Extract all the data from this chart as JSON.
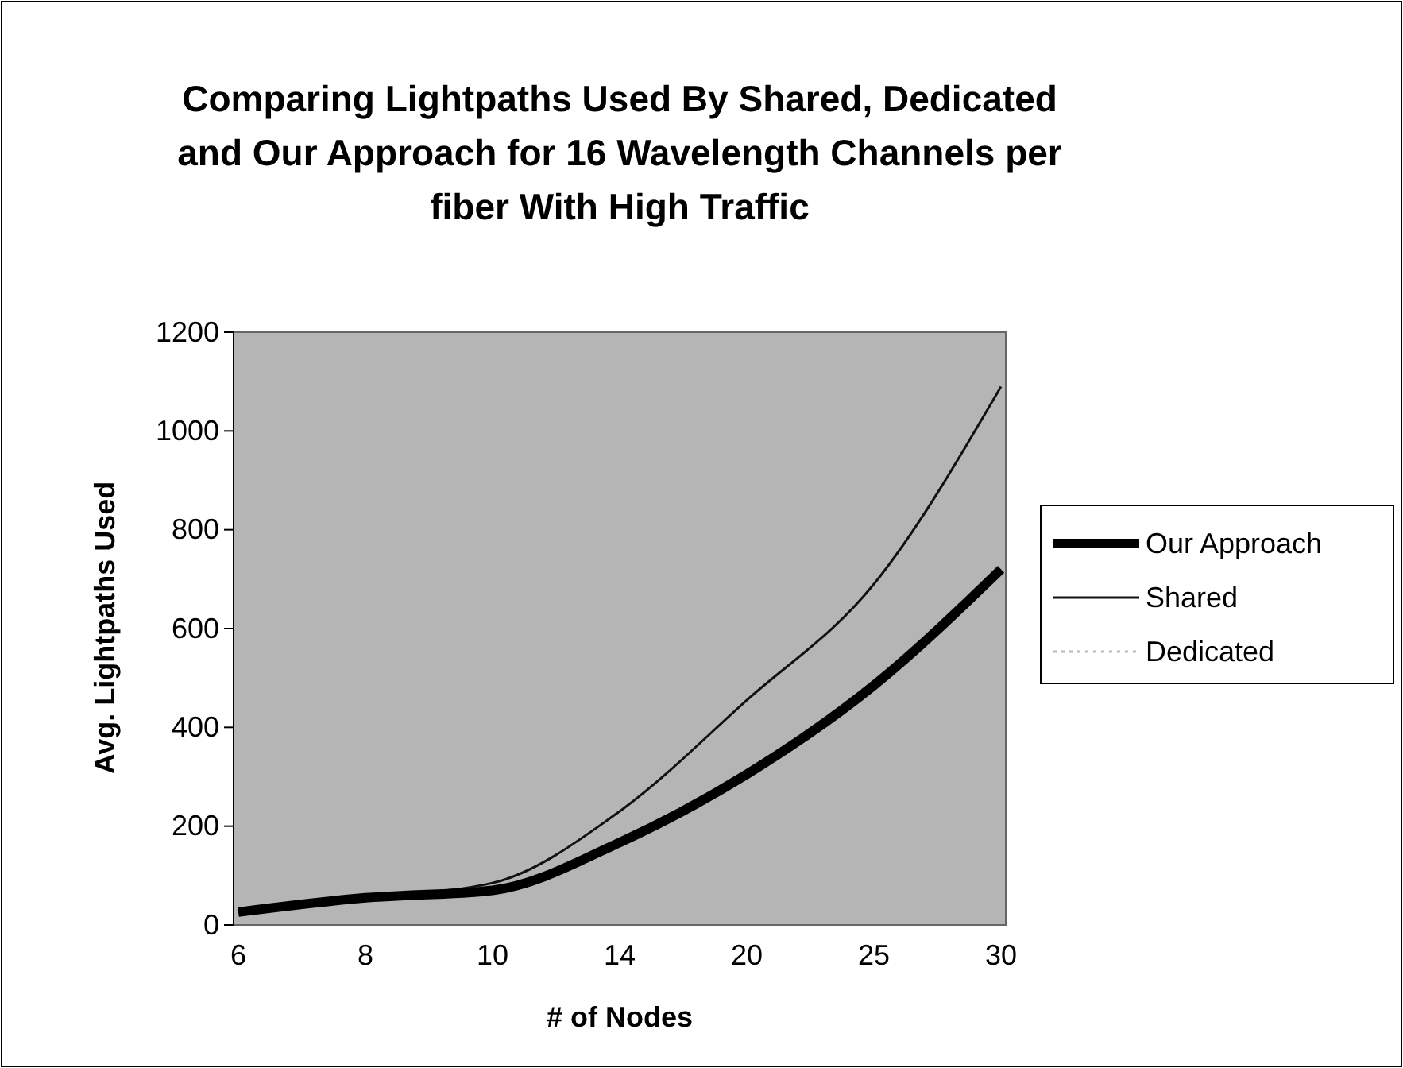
{
  "chart_data": {
    "type": "line",
    "title": "Comparing Lightpaths Used By Shared, Dedicated and Our Approach for 16 Wavelength Channels per fiber With High Traffic",
    "xlabel": "# of Nodes",
    "ylabel": "Avg. Lightpaths Used",
    "categories": [
      "6",
      "8",
      "10",
      "14",
      "20",
      "25",
      "30"
    ],
    "series": [
      {
        "name": "Our Approach",
        "color": "#000000",
        "values": [
          26,
          55,
          70,
          167,
          305,
          485,
          720
        ]
      },
      {
        "name": "Shared",
        "color": "#111111",
        "values": [
          27,
          55,
          85,
          230,
          455,
          690,
          1090
        ]
      },
      {
        "name": "Dedicated",
        "color": "#bbbbbb",
        "line_style": "dotted",
        "values": [
          null,
          null,
          null,
          null,
          null,
          null,
          null
        ]
      }
    ],
    "ylim": [
      0,
      1200
    ],
    "yticks": [
      0,
      200,
      400,
      600,
      800,
      1000,
      1200
    ],
    "legend": "right",
    "grid": false
  }
}
